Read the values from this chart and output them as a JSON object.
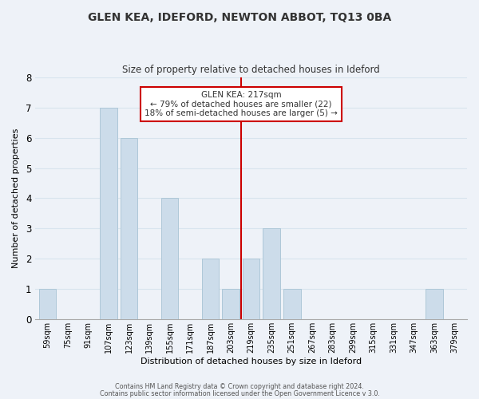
{
  "title": "GLEN KEA, IDEFORD, NEWTON ABBOT, TQ13 0BA",
  "subtitle": "Size of property relative to detached houses in Ideford",
  "xlabel": "Distribution of detached houses by size in Ideford",
  "ylabel": "Number of detached properties",
  "bar_labels": [
    "59sqm",
    "75sqm",
    "91sqm",
    "107sqm",
    "123sqm",
    "139sqm",
    "155sqm",
    "171sqm",
    "187sqm",
    "203sqm",
    "219sqm",
    "235sqm",
    "251sqm",
    "267sqm",
    "283sqm",
    "299sqm",
    "315sqm",
    "331sqm",
    "347sqm",
    "363sqm",
    "379sqm"
  ],
  "bar_values": [
    1,
    0,
    0,
    7,
    6,
    0,
    4,
    0,
    2,
    1,
    2,
    3,
    1,
    0,
    0,
    0,
    0,
    0,
    0,
    1,
    0
  ],
  "bar_color": "#ccdcea",
  "bar_edge_color": "#aec8d8",
  "highlight_line_color": "#cc0000",
  "ylim": [
    0,
    8
  ],
  "yticks": [
    0,
    1,
    2,
    3,
    4,
    5,
    6,
    7,
    8
  ],
  "annotation_title": "GLEN KEA: 217sqm",
  "annotation_line1": "← 79% of detached houses are smaller (22)",
  "annotation_line2": "18% of semi-detached houses are larger (5) →",
  "annotation_box_color": "#ffffff",
  "annotation_box_edge": "#cc0000",
  "grid_color": "#d8e4ee",
  "background_color": "#eef2f8",
  "footer_line1": "Contains HM Land Registry data © Crown copyright and database right 2024.",
  "footer_line2": "Contains public sector information licensed under the Open Government Licence v 3.0."
}
